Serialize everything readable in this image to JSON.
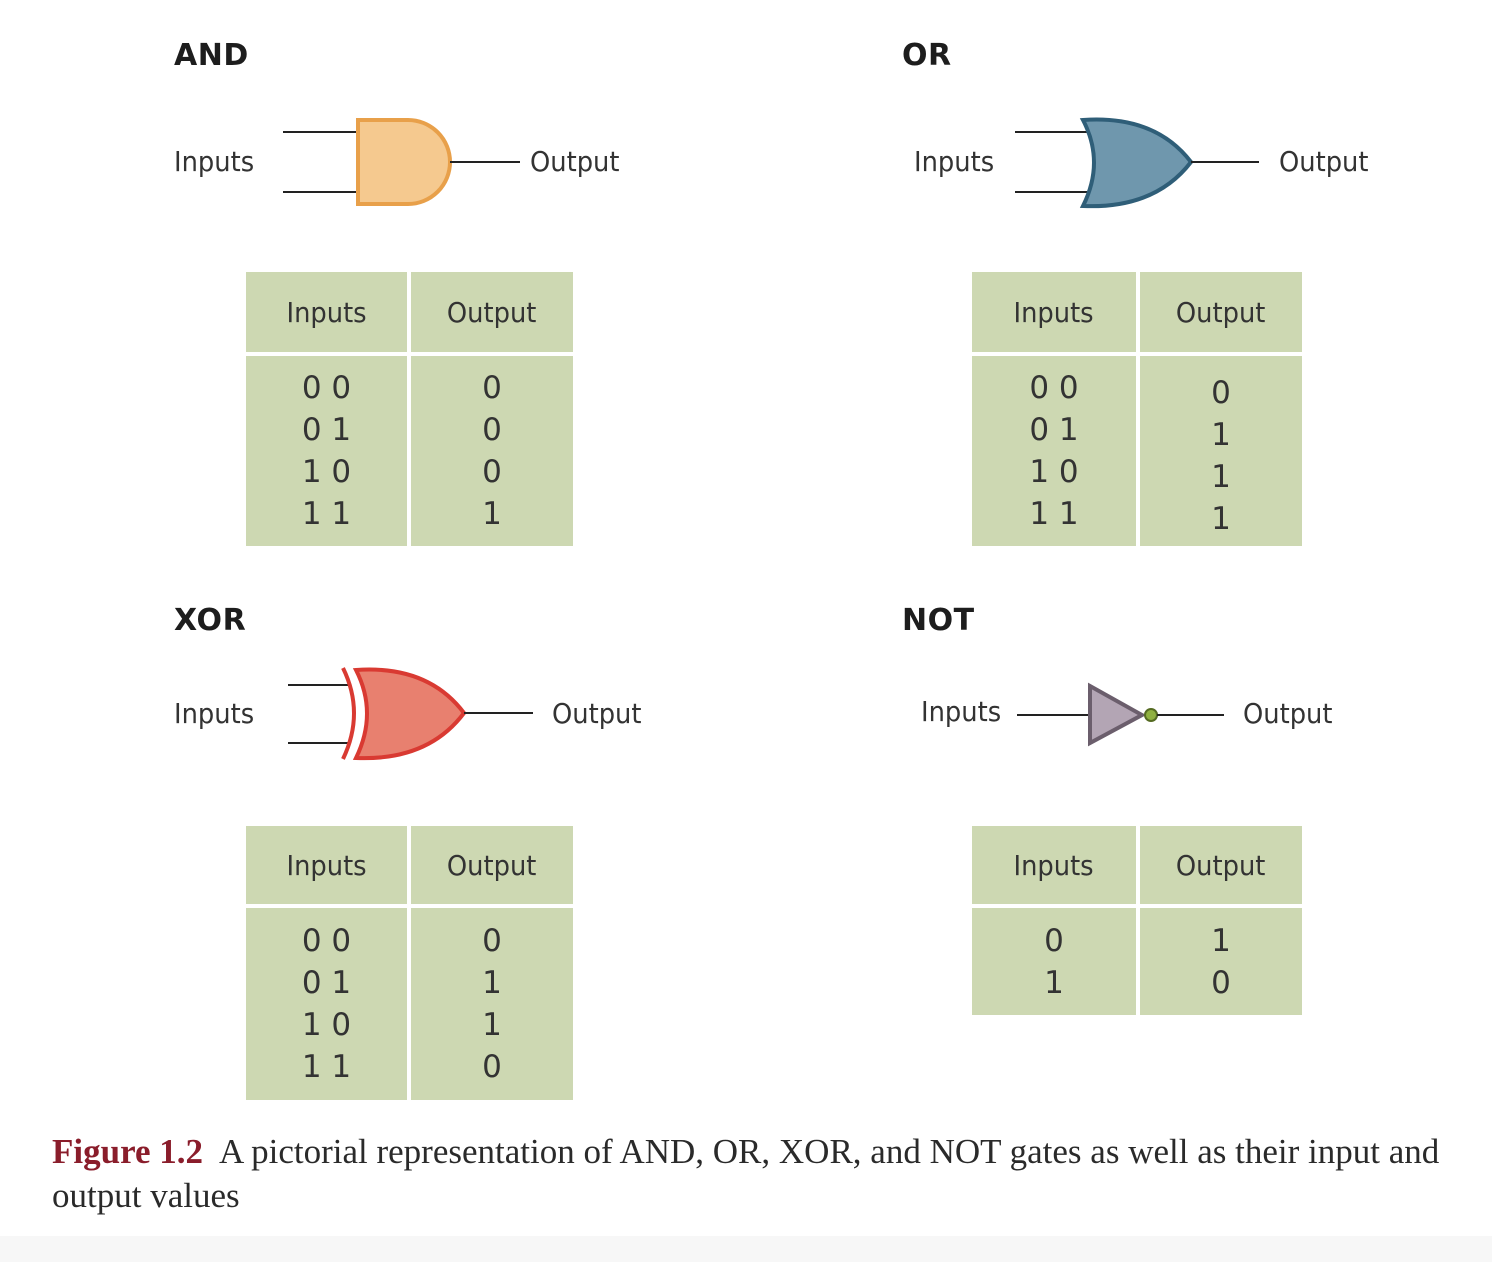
{
  "gates": {
    "and": {
      "title": "AND",
      "input_label": "Inputs",
      "output_label": "Output",
      "color": "#f5c98f",
      "stroke": "#e8a04a",
      "table": {
        "headers": [
          "Inputs",
          "Output"
        ],
        "inputs": [
          "0 0",
          "0 1",
          "1 0",
          "1 1"
        ],
        "outputs": [
          "0",
          "0",
          "0",
          "1"
        ]
      }
    },
    "or": {
      "title": "OR",
      "input_label": "Inputs",
      "output_label": "Output",
      "color": "#6f97ad",
      "stroke": "#2f5e78",
      "table": {
        "headers": [
          "Inputs",
          "Output"
        ],
        "inputs": [
          "0 0",
          "0 1",
          "1 0",
          "1 1"
        ],
        "outputs": [
          "0",
          "1",
          "1",
          "1"
        ]
      }
    },
    "xor": {
      "title": "XOR",
      "input_label": "Inputs",
      "output_label": "Output",
      "color": "#e8806f",
      "stroke": "#d93a32",
      "table": {
        "headers": [
          "Inputs",
          "Output"
        ],
        "inputs": [
          "0 0",
          "0 1",
          "1 0",
          "1 1"
        ],
        "outputs": [
          "0",
          "1",
          "1",
          "0"
        ]
      }
    },
    "not": {
      "title": "NOT",
      "input_label": "Inputs",
      "output_label": "Output",
      "color": "#b3a5b4",
      "stroke": "#6b5e6c",
      "bubble_color": "#8fb040",
      "table": {
        "headers": [
          "Inputs",
          "Output"
        ],
        "inputs": [
          "0",
          "1"
        ],
        "outputs": [
          "1",
          "0"
        ]
      }
    }
  },
  "caption": {
    "figure": "Figure 1.2",
    "text": "A pictorial representation of AND, OR, XOR, and NOT gates as well as their input and output values"
  },
  "table_color": "#cdd8b2"
}
